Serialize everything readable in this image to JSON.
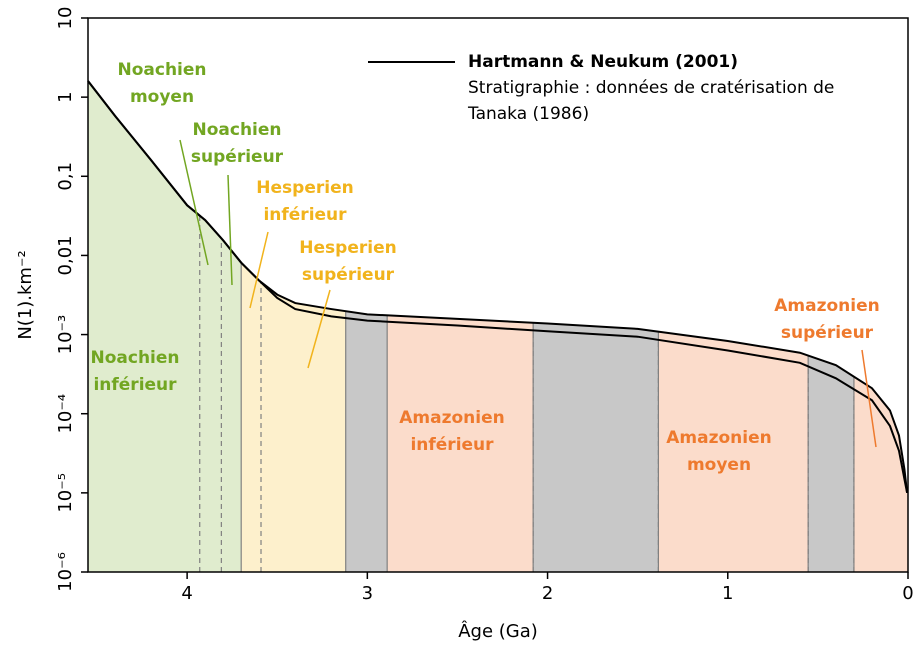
{
  "chart_data": {
    "type": "line",
    "xlabel": "Âge (Ga)",
    "ylabel": "N(1).km⁻²",
    "xlim": [
      4.55,
      0
    ],
    "xticks": [
      4,
      3,
      2,
      1,
      0
    ],
    "ylim": [
      1e-06,
      10
    ],
    "log_y": true,
    "yticks": [
      {
        "value": 1e-06,
        "label": "10⁻⁶"
      },
      {
        "value": 1e-05,
        "label": "10⁻⁵"
      },
      {
        "value": 0.0001,
        "label": "10⁻⁴"
      },
      {
        "value": 0.001,
        "label": "10⁻³"
      },
      {
        "value": 0.01,
        "label": "0,01"
      },
      {
        "value": 0.1,
        "label": "0,1"
      },
      1,
      10
    ],
    "x": [
      4.55,
      4.4,
      4.2,
      4.0,
      3.9,
      3.8,
      3.7,
      3.6,
      3.5,
      3.4,
      3.2,
      3.0,
      2.5,
      2.0,
      1.5,
      1.0,
      0.6,
      0.4,
      0.2,
      0.1,
      0.05,
      0.02,
      0.005
    ],
    "series": [
      {
        "name": "Hartmann & Neukum (2001)",
        "color": "#000000",
        "values": [
          1.6,
          0.58,
          0.16,
          0.043,
          0.028,
          0.0155,
          0.0081,
          0.0048,
          0.0032,
          0.0025,
          0.0021,
          0.0018,
          0.00158,
          0.00138,
          0.00118,
          0.00083,
          0.00059,
          0.00041,
          0.00021,
          0.00011,
          5.3e-05,
          2e-05,
          1e-05
        ]
      },
      {
        "color": "#000000",
        "values": [
          1.6,
          0.58,
          0.16,
          0.043,
          0.028,
          0.0155,
          0.0081,
          0.0048,
          0.0029,
          0.0021,
          0.0017,
          0.0015,
          0.0013,
          0.0011,
          0.00094,
          0.00063,
          0.00044,
          0.00028,
          0.000148,
          7e-05,
          3.4e-05,
          1.5e-05,
          1e-05
        ]
      }
    ],
    "note": [
      "Stratigraphie : données de cratérisation de",
      "Tanaka (1986)"
    ],
    "bands": [
      {
        "start": 4.55,
        "end": 3.7,
        "color": "#e0ecce"
      },
      {
        "start": 3.7,
        "end": 3.12,
        "color": "#fdf0cc"
      },
      {
        "start": 3.12,
        "end": 2.89,
        "color": "#c8c8c8"
      },
      {
        "start": 2.89,
        "end": 2.08,
        "color": "#fbdccb"
      },
      {
        "start": 2.08,
        "end": 1.385,
        "color": "#c8c8c8"
      },
      {
        "start": 1.385,
        "end": 0.554,
        "color": "#fbdccb"
      },
      {
        "start": 0.554,
        "end": 0.3,
        "color": "#c8c8c8"
      },
      {
        "start": 0.3,
        "end": 0,
        "color": "#fbdccb"
      }
    ],
    "boundaries": [
      3.93,
      3.81,
      3.59,
      2.08,
      1.385,
      0.554,
      0.3
    ],
    "epochs": [
      {
        "lines": [
          "Noachien",
          "moyen"
        ],
        "color": "#72a622"
      },
      {
        "lines": [
          "Noachien",
          "supérieur"
        ],
        "color": "#72a622"
      },
      {
        "lines": [
          "Hesperien",
          "inférieur"
        ],
        "color": "#f1b31c"
      },
      {
        "lines": [
          "Hesperien",
          "supérieur"
        ],
        "color": "#f1b31c"
      },
      {
        "lines": [
          "Noachien",
          "inférieur"
        ],
        "color": "#72a622"
      },
      {
        "lines": [
          "Amazonien",
          "inférieur"
        ],
        "color": "#ee7a2e"
      },
      {
        "lines": [
          "Amazonien",
          "moyen"
        ],
        "color": "#ee7a2e"
      },
      {
        "lines": [
          "Amazonien",
          "supérieur"
        ],
        "color": "#ee7a2e"
      }
    ]
  }
}
